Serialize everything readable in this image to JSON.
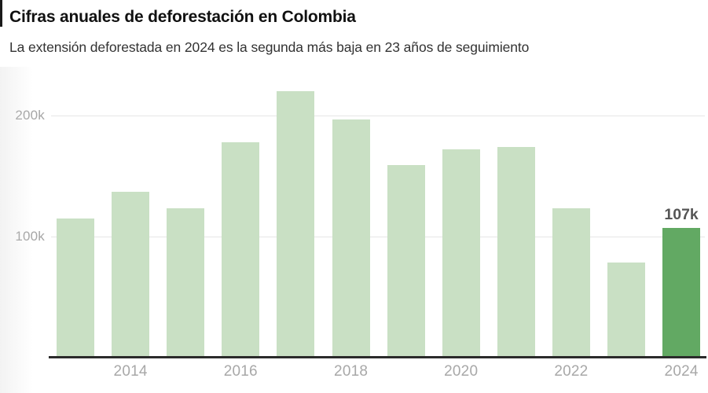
{
  "header": {
    "title": "Cifras anuales de deforestación en Colombia",
    "subtitle": "La extensión deforestada en 2024 es la segunda más baja en 23 años de seguimiento"
  },
  "chart_data": {
    "type": "bar",
    "title": "Cifras anuales de deforestación en Colombia",
    "subtitle": "La extensión deforestada en 2024 es la segunda más baja en 23 años de seguimiento",
    "categories": [
      2013,
      2014,
      2015,
      2016,
      2017,
      2018,
      2019,
      2020,
      2021,
      2022,
      2023,
      2024
    ],
    "values": [
      115000,
      137000,
      123000,
      178000,
      220000,
      197000,
      159000,
      172000,
      174000,
      123000,
      78000,
      107000
    ],
    "xlabel": "",
    "ylabel": "",
    "ylim": [
      0,
      230000
    ],
    "grid": "horizontal",
    "yticks": [
      {
        "value": 100000,
        "label": "100k"
      },
      {
        "value": 200000,
        "label": "200k"
      }
    ],
    "xticks": [
      {
        "year": 2014,
        "label": "2014"
      },
      {
        "year": 2016,
        "label": "2016"
      },
      {
        "year": 2018,
        "label": "2018"
      },
      {
        "year": 2020,
        "label": "2020"
      },
      {
        "year": 2022,
        "label": "2022"
      },
      {
        "year": 2024,
        "label": "2024"
      }
    ],
    "highlight": {
      "year": 2024,
      "index": 11,
      "label": "107k"
    },
    "colors": {
      "bar": "#c9e0c4",
      "highlight_bar": "#62a963",
      "gridline": "#e6e6e6",
      "axis_line": "#2b2b2b",
      "tick_label": "#a6a6a6",
      "annotation": "#555555"
    }
  }
}
